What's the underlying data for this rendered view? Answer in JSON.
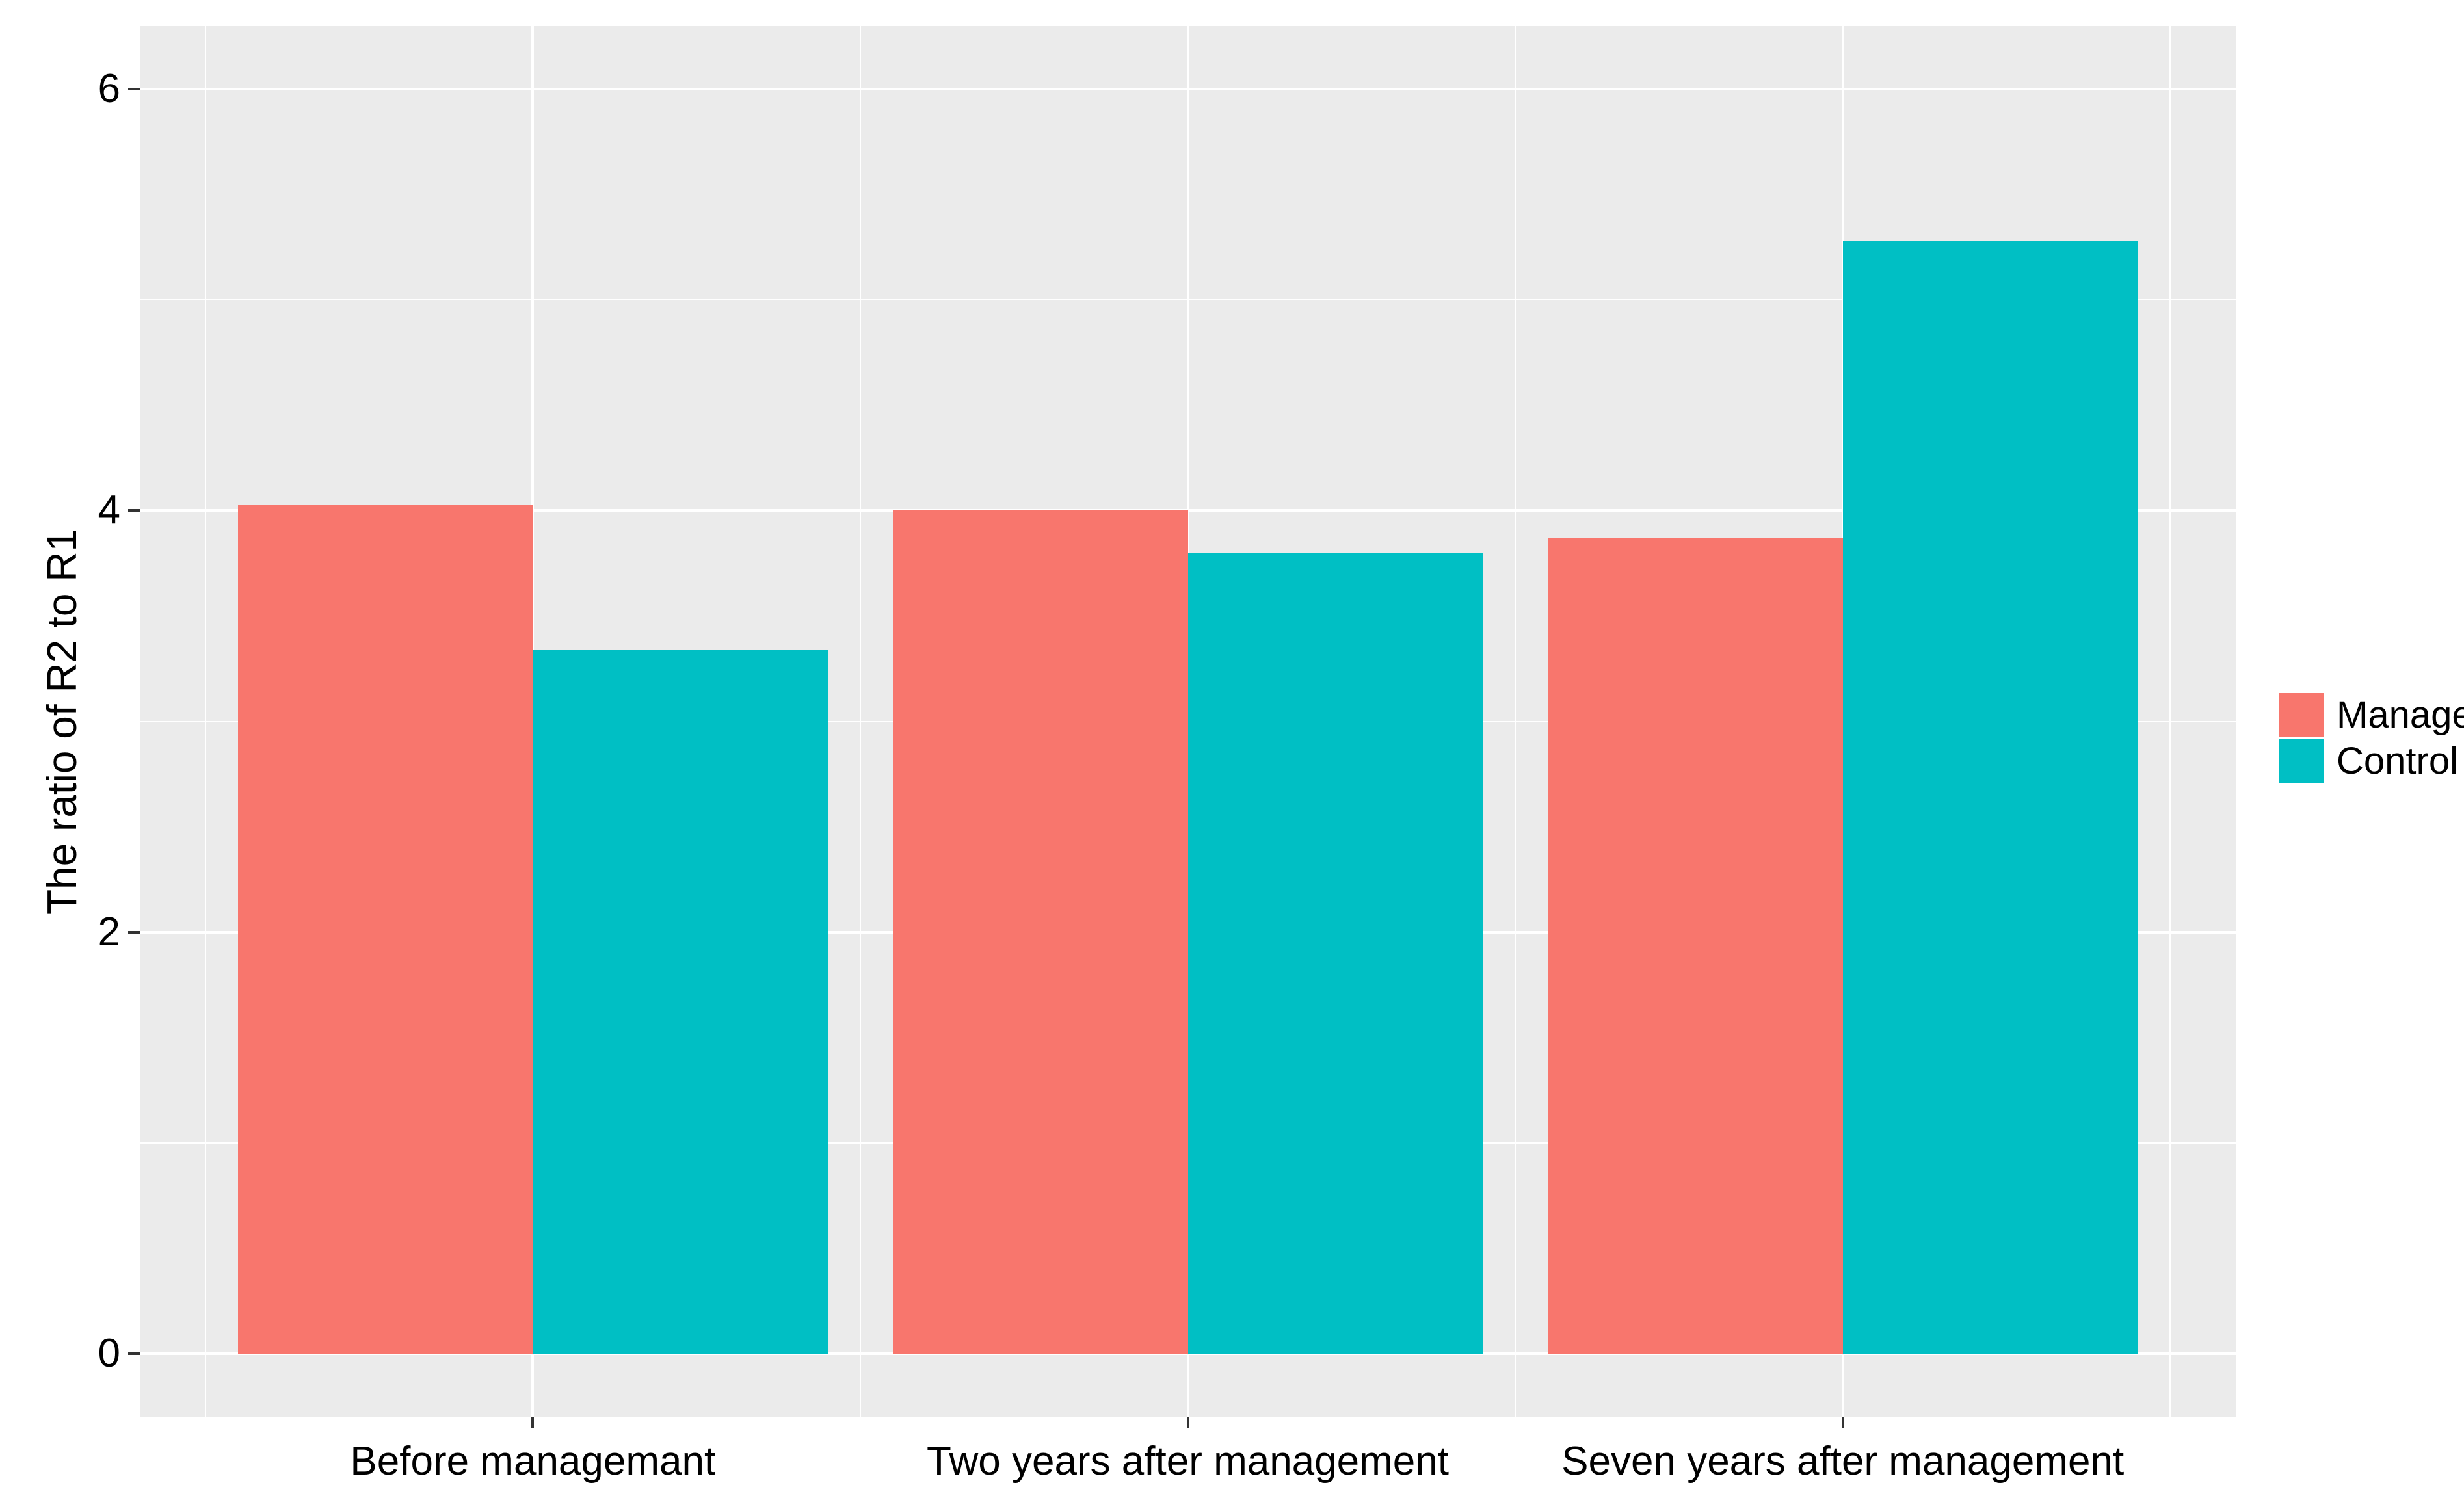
{
  "figure": {
    "background": "#FFFFFF"
  },
  "chart_data": {
    "type": "bar",
    "layout": "grouped-dodged",
    "title": "",
    "xlabel": "",
    "ylabel": "The ratio of R2 to R1",
    "categories": [
      "Before managemant",
      "Two years after management",
      "Seven years after management"
    ],
    "series": [
      {
        "name": "Manage",
        "color": "#F8766D",
        "values": [
          4.03,
          4.0,
          3.87
        ]
      },
      {
        "name": "Control",
        "color": "#00BFC4",
        "values": [
          3.34,
          3.8,
          5.28
        ]
      }
    ],
    "ylim": [
      0,
      6
    ],
    "y_ticks": [
      0,
      2,
      4,
      6
    ],
    "y_minor_ticks": [
      1,
      3,
      5
    ],
    "bar_width": 0.45,
    "grid": "on",
    "legend_position": "right",
    "panel_background": "#EBEBEB",
    "grid_color": "#FFFFFF",
    "tick_color": "#333333",
    "text_color": "#000000"
  }
}
